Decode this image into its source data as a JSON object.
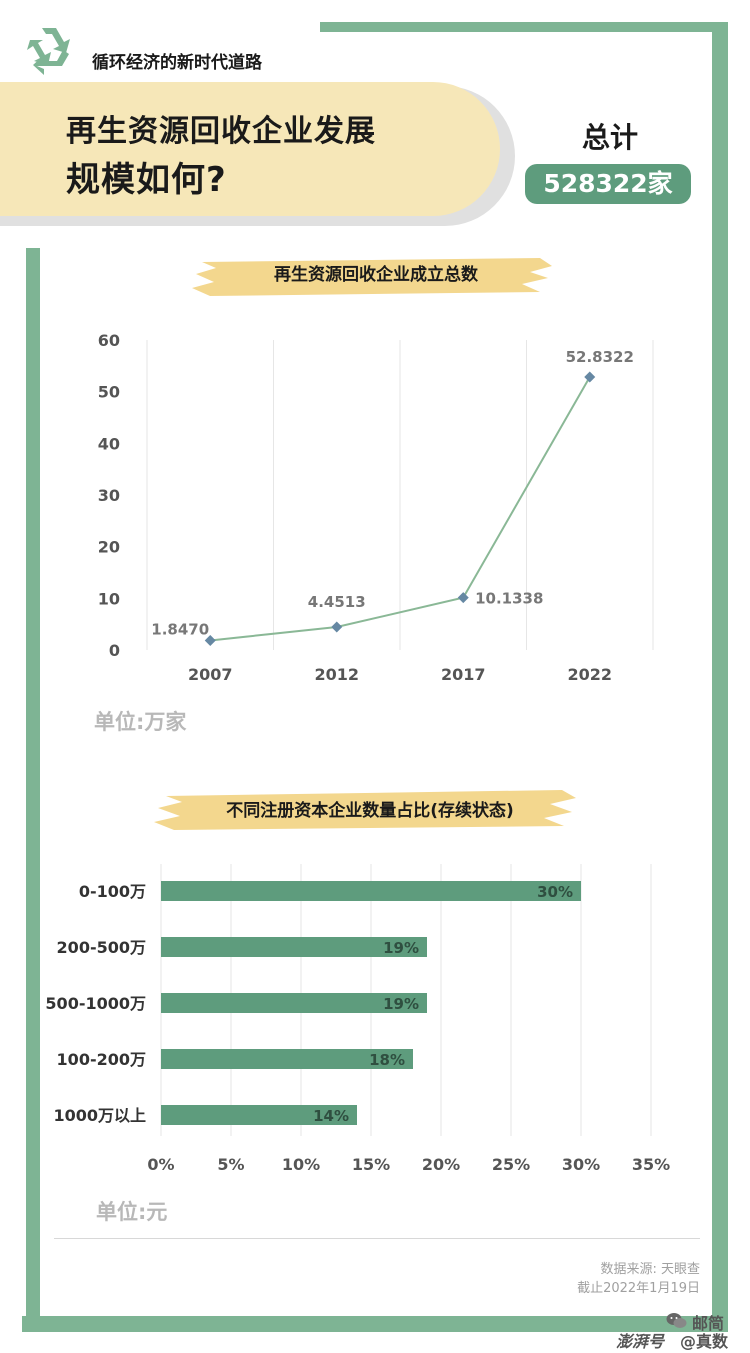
{
  "header": {
    "subtitle": "循环经济的新时代道路",
    "title_line1": "再生资源回收企业发展",
    "title_line2": "规模如何?",
    "total_label": "总计",
    "total_value": "528322家"
  },
  "line_section": {
    "title": "再生资源回收企业成立总数",
    "unit": "单位:万家"
  },
  "bar_section": {
    "title": "不同注册资本企业数量占比(存续状态)",
    "unit": "单位:元"
  },
  "footer": {
    "source": "数据来源: 天眼查",
    "date": "截止2022年1月19日"
  },
  "watermark": {
    "account": "邮简",
    "handle": "@真数",
    "brand": "澎湃号"
  },
  "colors": {
    "frame": "#7eb494",
    "bar": "#5e9c7d",
    "line": "#8ab896",
    "marker": "#6688a3",
    "banner": "#f6e7b8",
    "brush": "#f3d78e"
  },
  "icons": [
    "recycle-icon",
    "wechat-icon"
  ],
  "chart_data": [
    {
      "type": "line",
      "title": "再生资源回收企业成立总数",
      "x": [
        "2007",
        "2012",
        "2017",
        "2022"
      ],
      "series": [
        {
          "values": [
            1.847,
            4.4513,
            10.1338,
            52.8322
          ],
          "labels": [
            "1.8470",
            "4.4513",
            "10.1338",
            "52.8322"
          ]
        }
      ],
      "ylim": [
        0,
        60
      ],
      "yticks": [
        0,
        10,
        20,
        30,
        40,
        50,
        60
      ],
      "grid": "vertical",
      "ylabel": "",
      "xlabel": ""
    },
    {
      "type": "bar",
      "orientation": "horizontal",
      "title": "不同注册资本企业数量占比(存续状态)",
      "categories": [
        "0-100万",
        "200-500万",
        "500-1000万",
        "100-200万",
        "1000万以上"
      ],
      "values": [
        30,
        19,
        19,
        18,
        14
      ],
      "labels": [
        "30%",
        "19%",
        "19%",
        "18%",
        "14%"
      ],
      "xlim": [
        0,
        35
      ],
      "xticks": [
        "0%",
        "5%",
        "10%",
        "15%",
        "20%",
        "25%",
        "30%",
        "35%"
      ],
      "grid": "vertical"
    }
  ]
}
